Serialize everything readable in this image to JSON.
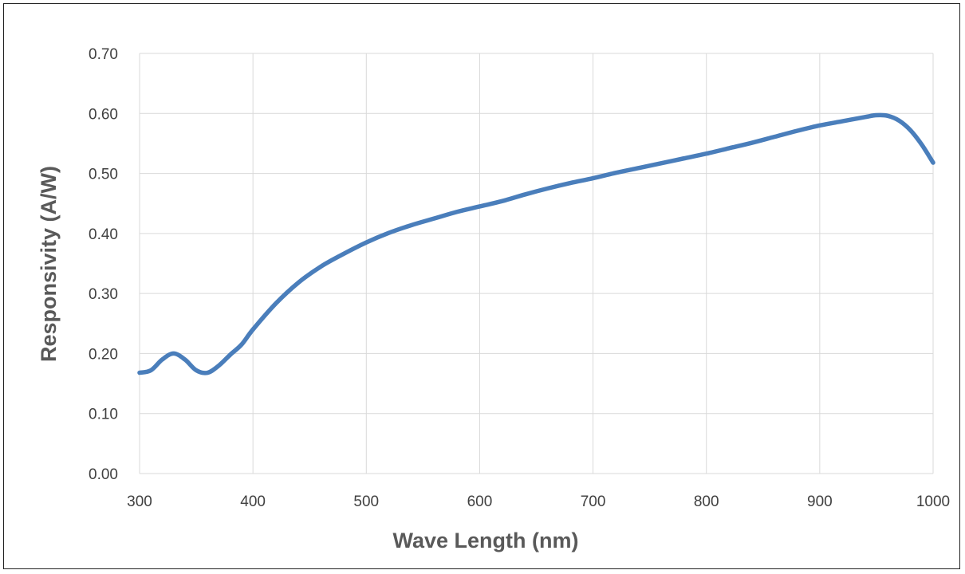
{
  "chart_data": {
    "type": "line",
    "title": "",
    "xlabel": "Wave Length (nm)",
    "ylabel": "Responsivity (A/W)",
    "xlim": [
      300,
      1000
    ],
    "ylim": [
      0.0,
      0.7
    ],
    "x_ticks": [
      "300",
      "400",
      "500",
      "600",
      "700",
      "800",
      "900",
      "1000"
    ],
    "y_ticks": [
      "0.00",
      "0.10",
      "0.20",
      "0.30",
      "0.40",
      "0.50",
      "0.60",
      "0.70"
    ],
    "grid": true,
    "legend": "none",
    "series": [
      {
        "color": "#4a7ebb",
        "x": [
          300,
          310,
          320,
          330,
          340,
          350,
          360,
          370,
          380,
          390,
          400,
          420,
          440,
          460,
          480,
          500,
          520,
          540,
          560,
          580,
          600,
          620,
          640,
          660,
          680,
          700,
          720,
          740,
          760,
          780,
          800,
          820,
          840,
          860,
          880,
          900,
          920,
          940,
          950,
          960,
          970,
          980,
          990,
          1000
        ],
        "y": [
          0.168,
          0.172,
          0.19,
          0.2,
          0.19,
          0.172,
          0.168,
          0.18,
          0.198,
          0.215,
          0.24,
          0.283,
          0.318,
          0.345,
          0.366,
          0.385,
          0.401,
          0.414,
          0.425,
          0.436,
          0.445,
          0.454,
          0.465,
          0.475,
          0.484,
          0.492,
          0.501,
          0.509,
          0.517,
          0.525,
          0.533,
          0.542,
          0.551,
          0.561,
          0.571,
          0.58,
          0.587,
          0.594,
          0.597,
          0.596,
          0.588,
          0.572,
          0.548,
          0.518
        ]
      }
    ]
  }
}
